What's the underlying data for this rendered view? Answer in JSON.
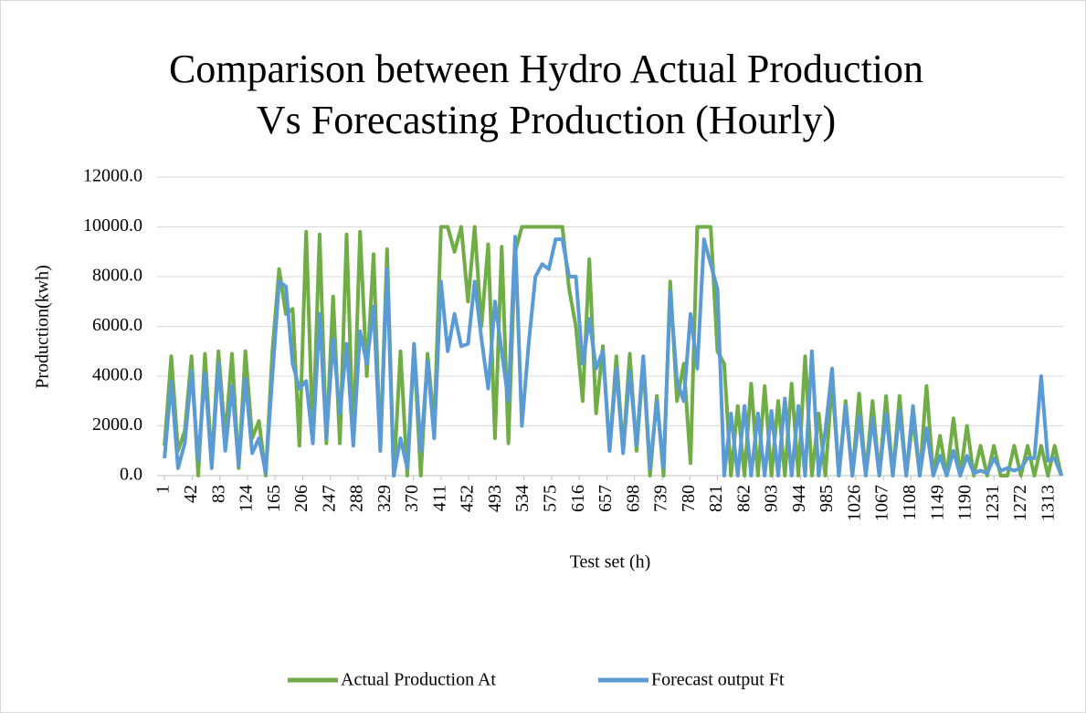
{
  "chart_data": {
    "type": "line",
    "title": [
      "Comparison between Hydro  Actual Production",
      "Vs Forecasting Production (Hourly)"
    ],
    "x_label": "Test set (h)",
    "y_label": "Production(kwh)",
    "x": [
      1,
      11,
      21,
      31,
      41,
      51,
      61,
      71,
      81,
      91,
      101,
      111,
      121,
      131,
      141,
      151,
      161,
      171,
      181,
      191,
      201,
      211,
      221,
      231,
      241,
      251,
      261,
      271,
      281,
      291,
      301,
      311,
      321,
      331,
      341,
      351,
      361,
      371,
      381,
      391,
      401,
      411,
      421,
      431,
      441,
      451,
      461,
      471,
      481,
      491,
      501,
      511,
      521,
      531,
      541,
      551,
      561,
      571,
      581,
      591,
      601,
      611,
      621,
      631,
      641,
      651,
      661,
      671,
      681,
      691,
      701,
      711,
      721,
      731,
      741,
      751,
      761,
      771,
      781,
      791,
      801,
      811,
      821,
      831,
      841,
      851,
      861,
      871,
      881,
      891,
      901,
      911,
      921,
      931,
      941,
      951,
      961,
      971,
      981,
      991,
      1001,
      1011,
      1021,
      1031,
      1041,
      1051,
      1061,
      1071,
      1081,
      1091,
      1101,
      1111,
      1121,
      1131,
      1141,
      1151,
      1161,
      1171,
      1181,
      1191,
      1201,
      1211,
      1221,
      1231,
      1241,
      1251,
      1261,
      1271,
      1281,
      1291,
      1301,
      1311,
      1321,
      1331
    ],
    "series": [
      {
        "name": "Actual Production At",
        "color": "#70ad47",
        "values": [
          1200,
          4800,
          1000,
          1800,
          4800,
          0,
          4900,
          500,
          5000,
          1500,
          4900,
          300,
          5000,
          1500,
          2200,
          0,
          5000,
          8300,
          6500,
          6700,
          1200,
          9800,
          1500,
          9700,
          1300,
          7200,
          1300,
          9700,
          1300,
          9800,
          4000,
          8900,
          1000,
          9100,
          0,
          5000,
          0,
          5100,
          0,
          4900,
          2000,
          10000,
          10000,
          9000,
          10000,
          7000,
          10000,
          6000,
          9300,
          1500,
          9200,
          1300,
          9000,
          10000,
          10000,
          10000,
          10000,
          10000,
          10000,
          10000,
          7500,
          6000,
          3000,
          8700,
          2500,
          5200,
          1000,
          4800,
          1000,
          4900,
          1000,
          4500,
          0,
          3200,
          0,
          7800,
          3000,
          4500,
          500,
          10000,
          10000,
          10000,
          5000,
          4500,
          0,
          2800,
          0,
          3700,
          0,
          3600,
          0,
          3000,
          0,
          3700,
          0,
          4800,
          0,
          2500,
          0,
          3800,
          0,
          3000,
          0,
          3300,
          0,
          3000,
          0,
          3200,
          0,
          3200,
          0,
          2300,
          0,
          3600,
          0,
          1600,
          0,
          2300,
          0,
          2000,
          0,
          1200,
          0,
          1200,
          0,
          0,
          1200,
          0,
          1200,
          0,
          1200,
          0,
          1200,
          0
        ]
      },
      {
        "name": "Forecast output Ft",
        "color": "#5b9bd5",
        "values": [
          700,
          3800,
          300,
          1300,
          4200,
          600,
          4100,
          300,
          4500,
          1000,
          3600,
          400,
          3900,
          900,
          1500,
          100,
          4000,
          7800,
          7600,
          4500,
          3500,
          3800,
          1300,
          6500,
          1500,
          5500,
          2500,
          5300,
          1200,
          5800,
          4500,
          6800,
          1000,
          8300,
          0,
          1500,
          300,
          5300,
          1000,
          4600,
          1500,
          7800,
          5000,
          6500,
          5200,
          5300,
          7800,
          5500,
          3500,
          7000,
          5000,
          3000,
          9600,
          2000,
          5300,
          8000,
          8500,
          8300,
          9500,
          9500,
          8000,
          8000,
          4500,
          6300,
          4300,
          5000,
          1000,
          4300,
          900,
          4200,
          1200,
          4800,
          300,
          3000,
          300,
          7400,
          3800,
          3000,
          6500,
          4300,
          9500,
          8500,
          7500,
          0,
          2500,
          0,
          2800,
          0,
          2500,
          0,
          2600,
          0,
          3100,
          0,
          2800,
          0,
          5000,
          0,
          1800,
          4300,
          0,
          2800,
          0,
          2400,
          0,
          2300,
          0,
          2500,
          0,
          2600,
          0,
          2800,
          0,
          1900,
          0,
          800,
          0,
          1000,
          0,
          800,
          100,
          200,
          100,
          700,
          200,
          300,
          200,
          300,
          700,
          700,
          4000,
          600,
          700,
          0
        ]
      }
    ],
    "xlim": [
      -10,
      1335
    ],
    "xticks": [
      1,
      42,
      83,
      124,
      165,
      206,
      247,
      288,
      329,
      370,
      411,
      452,
      493,
      534,
      575,
      616,
      657,
      698,
      739,
      780,
      821,
      862,
      903,
      944,
      985,
      1026,
      1067,
      1108,
      1149,
      1190,
      1231,
      1272,
      1313
    ],
    "ylim": [
      0,
      12000
    ],
    "yticks": [
      {
        "value": 0,
        "label": "0.0"
      },
      {
        "value": 2000,
        "label": "2000.0"
      },
      {
        "value": 4000,
        "label": "4000.0"
      },
      {
        "value": 6000,
        "label": "6000.0"
      },
      {
        "value": 8000,
        "label": "8000.0"
      },
      {
        "value": 10000,
        "label": "10000.0"
      },
      {
        "value": 12000,
        "label": "12000.0"
      }
    ],
    "grid": true,
    "legend": "bottom"
  }
}
